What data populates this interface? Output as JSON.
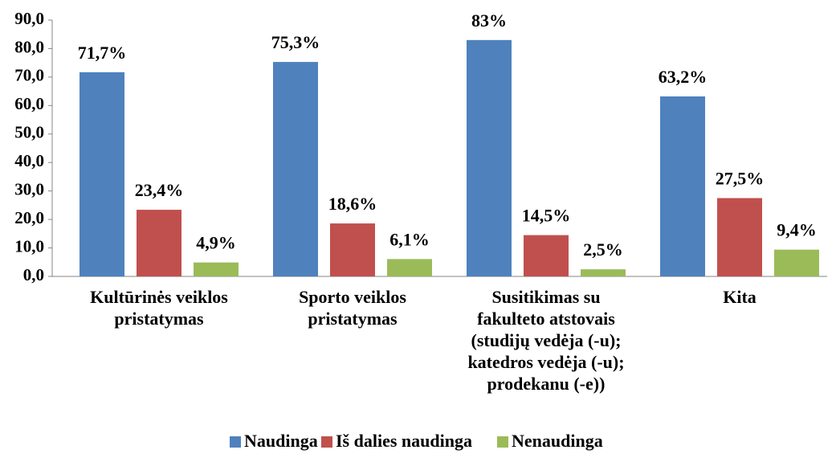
{
  "chart_data": {
    "type": "bar",
    "categories": [
      [
        "Kultūrinės veiklos",
        "pristatymas"
      ],
      [
        "Sporto veiklos",
        "pristatymas"
      ],
      [
        "Susitikimas su",
        "fakulteto atstovais",
        "(studijų vedėja (-u);",
        "katedros vedėja (-u);",
        "prodekanu (-e))"
      ],
      [
        "Kita"
      ]
    ],
    "series": [
      {
        "name": "Naudinga",
        "color": "#4f81bd",
        "values": [
          71.7,
          75.3,
          83,
          63.2
        ],
        "value_labels": [
          "71,7%",
          "75,3%",
          "83%",
          "63,2%"
        ]
      },
      {
        "name": "Iš dalies naudinga",
        "color": "#c0504d",
        "values": [
          23.4,
          18.6,
          14.5,
          27.5
        ],
        "value_labels": [
          "23,4%",
          "18,6%",
          "14,5%",
          "27,5%"
        ]
      },
      {
        "name": "Nenaudinga",
        "color": "#9bbb59",
        "values": [
          4.9,
          6.1,
          2.5,
          9.4
        ],
        "value_labels": [
          "4,9%",
          "6,1%",
          "2,5%",
          "9,4%"
        ]
      }
    ],
    "ylim": [
      0,
      90
    ],
    "yticks": [
      {
        "value": 0,
        "label": "0,0"
      },
      {
        "value": 10,
        "label": "10,0"
      },
      {
        "value": 20,
        "label": "20,0"
      },
      {
        "value": 30,
        "label": "30,0"
      },
      {
        "value": 40,
        "label": "40,0"
      },
      {
        "value": 50,
        "label": "50,0"
      },
      {
        "value": 60,
        "label": "60,0"
      },
      {
        "value": 70,
        "label": "70,0"
      },
      {
        "value": 80,
        "label": "80,0"
      },
      {
        "value": 90,
        "label": "90,0"
      }
    ],
    "grid": false,
    "legend": "bottom"
  }
}
